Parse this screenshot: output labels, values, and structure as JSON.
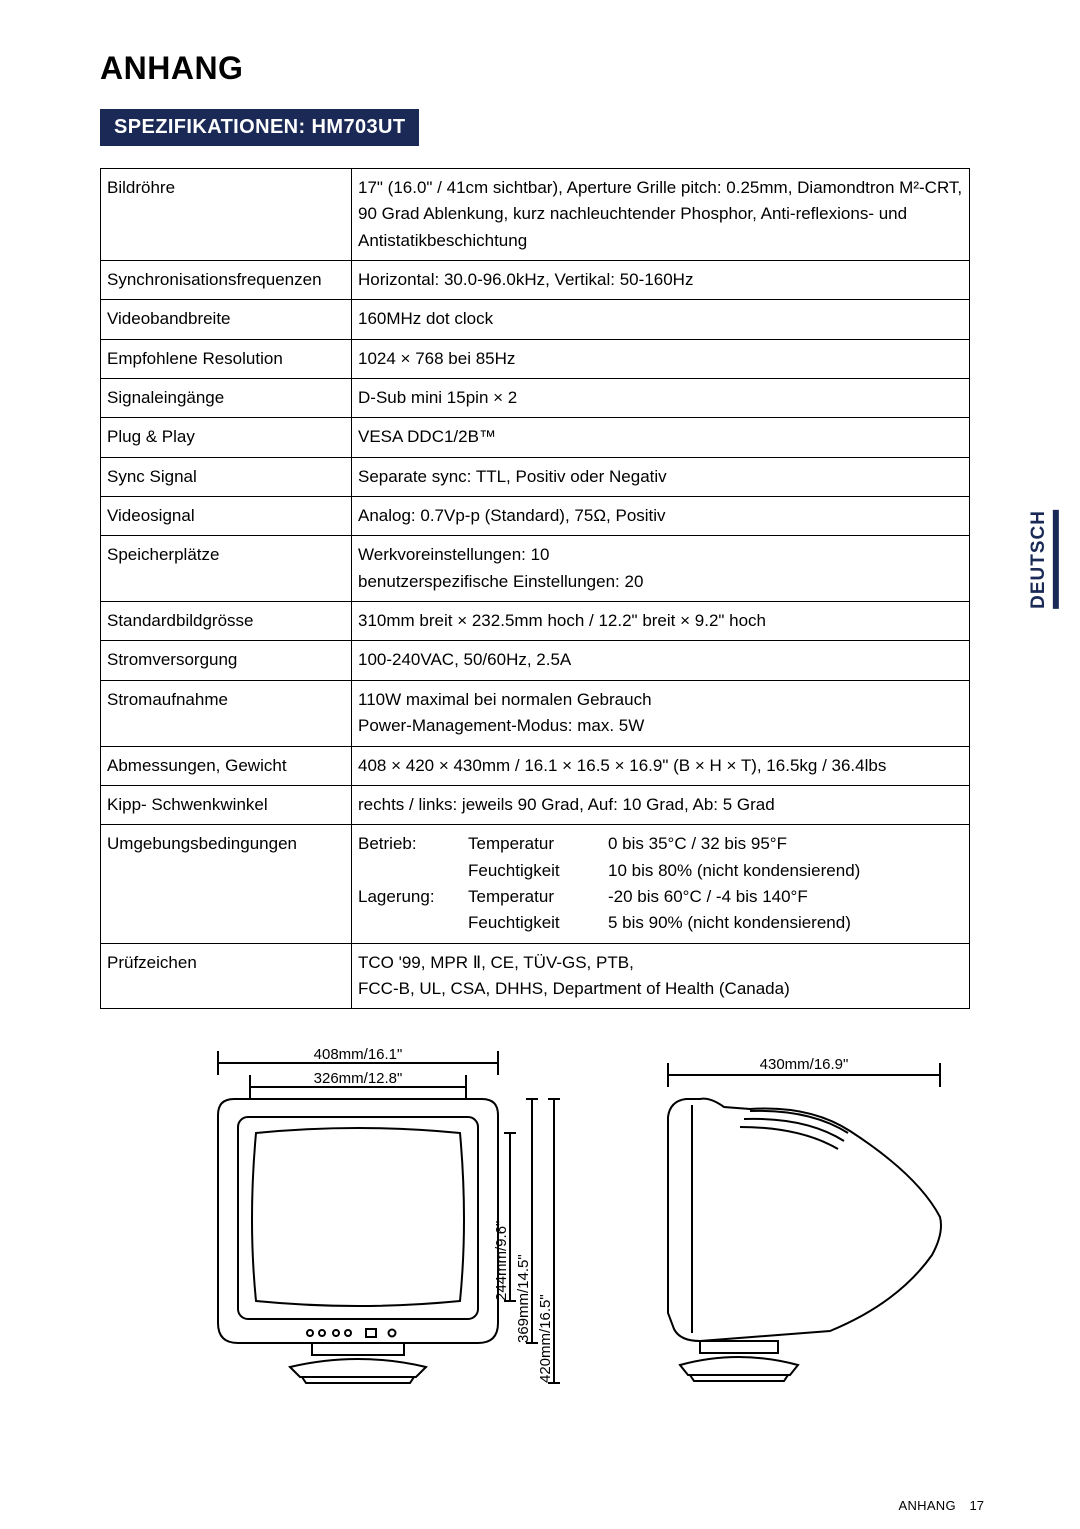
{
  "colors": {
    "brand": "#1a2955",
    "text": "#000000",
    "bg": "#ffffff"
  },
  "page": {
    "title": "ANHANG",
    "band": "SPEZIFIKATIONEN: HM703UT",
    "side_tab": "DEUTSCH",
    "footer_label": "ANHANG",
    "footer_page": "17"
  },
  "spec_rows": [
    {
      "label": "Bildröhre",
      "value": "17\" (16.0\" / 41cm sichtbar), Aperture Grille pitch: 0.25mm, Diamondtron M²-CRT, 90 Grad Ablenkung, kurz nachleuchtender Phosphor, Anti-reflexions- und Antistatikbeschichtung"
    },
    {
      "label": "Synchronisationsfrequenzen",
      "value": "Horizontal: 30.0-96.0kHz, Vertikal: 50-160Hz"
    },
    {
      "label": "Videobandbreite",
      "value": "160MHz dot clock"
    },
    {
      "label": "Empfohlene Resolution",
      "value": "1024 × 768 bei 85Hz"
    },
    {
      "label": "Signaleingänge",
      "value": "D-Sub mini 15pin × 2"
    },
    {
      "label": "Plug & Play",
      "value": "VESA DDC1/2B™"
    },
    {
      "label": "Sync Signal",
      "value": "Separate sync:  TTL, Positiv oder Negativ"
    },
    {
      "label": "Videosignal",
      "value": "Analog: 0.7Vp-p (Standard), 75Ω, Positiv"
    },
    {
      "label": "Speicherplätze",
      "value": "Werkvoreinstellungen:                        10\nbenutzerspezifische Einstellungen:  20"
    },
    {
      "label": "Standardbildgrösse",
      "value": "310mm breit × 232.5mm hoch / 12.2\" breit × 9.2\" hoch"
    },
    {
      "label": "Stromversorgung",
      "value": "100-240VAC, 50/60Hz, 2.5A"
    },
    {
      "label": "Stromaufnahme",
      "value": "110W maximal bei normalen Gebrauch\nPower-Management-Modus: max. 5W",
      "dashed": true
    },
    {
      "label": "Abmessungen, Gewicht",
      "value": "408 × 420 × 430mm / 16.1 × 16.5 × 16.9\" (B × H × T), 16.5kg / 36.4lbs"
    },
    {
      "label": "Kipp-  Schwenkwinkel",
      "value": "rechts / links: jeweils 90 Grad, Auf: 10 Grad, Ab: 5 Grad"
    },
    {
      "label": "Umgebungsbedingungen",
      "value_parts": {
        "op": {
          "head": "Betrieb:",
          "t": "Temperatur",
          "tv": "0 bis 35°C / 32 bis 95°F",
          "h": "Feuchtigkeit",
          "hv": "10 bis 80% (nicht kondensierend)"
        },
        "st": {
          "head": "Lagerung:",
          "t": "Temperatur",
          "tv": "-20 bis 60°C / -4 bis 140°F",
          "h": "Feuchtigkeit",
          "hv": "5 bis 90% (nicht kondensierend)"
        }
      }
    },
    {
      "label": "Prüfzeichen",
      "value": "TCO '99, MPR Ⅱ, CE, TÜV-GS, PTB,\nFCC-B, UL, CSA, DHHS, Department of Health (Canada)"
    }
  ],
  "diagram_labels": {
    "front": {
      "w_outer": "408mm/16.1\"",
      "w_inner": "326mm/12.8\"",
      "h_screen": "244mm/9.6\"",
      "h_inner": "369mm/14.5\"",
      "h_full": "420mm/16.5\""
    },
    "side": {
      "depth": "430mm/16.9\""
    }
  },
  "diagram_style": {
    "stroke": "#000000",
    "stroke_width": 2,
    "label_fontsize": 15,
    "vertical_label_fontsize": 15
  }
}
